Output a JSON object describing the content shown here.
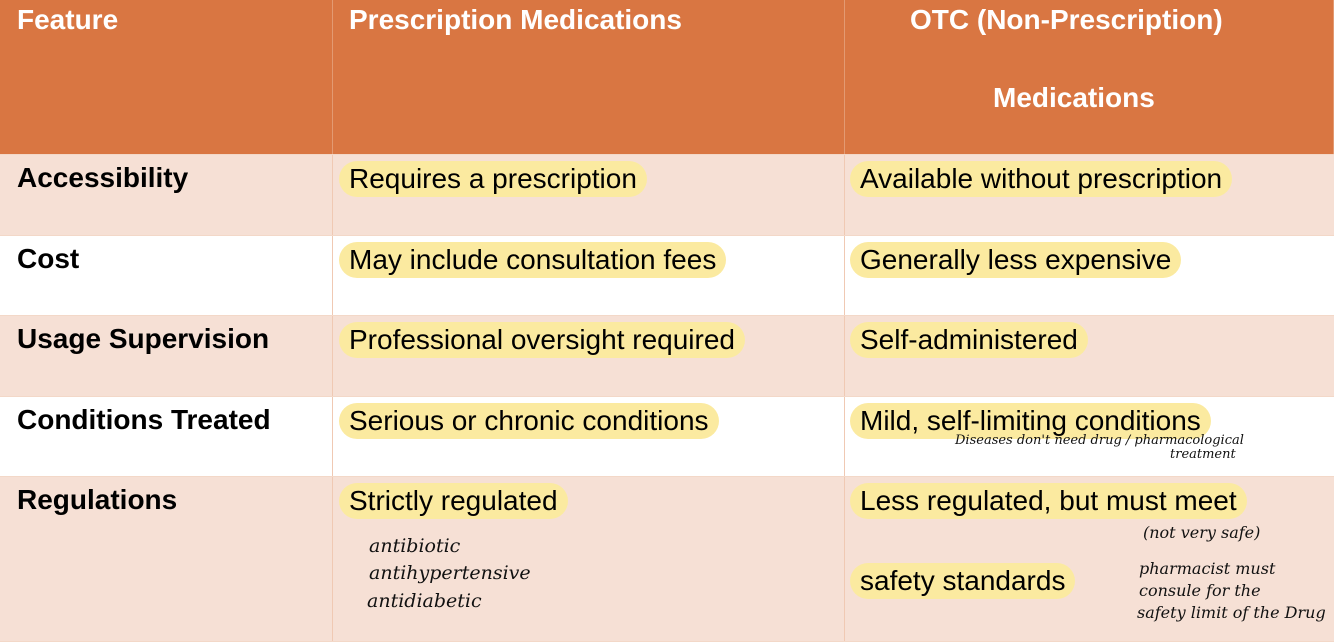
{
  "header": {
    "feature": "Feature",
    "prescription": "Prescription Medications",
    "otc_line1": "OTC (Non-Prescription)",
    "otc_line2": "Medications"
  },
  "rows": [
    {
      "feature": "Accessibility",
      "prescription": "Requires a prescription",
      "otc": "Available without prescription"
    },
    {
      "feature": "Cost",
      "prescription": "May include consultation fees",
      "otc": "Generally less expensive"
    },
    {
      "feature": "Usage Supervision",
      "prescription": "Professional oversight required",
      "otc": "Self-administered"
    },
    {
      "feature": "Conditions Treated",
      "prescription": "Serious or chronic conditions",
      "otc": "Mild, self-limiting conditions"
    },
    {
      "feature": "Regulations",
      "prescription": "Strictly regulated",
      "otc_line1": "Less regulated, but must meet",
      "otc_line2": "safety standards"
    }
  ],
  "notes": {
    "conditions_note_line1": "Diseases don't need drug / pharmacological",
    "conditions_note_line2": "treatment",
    "rx_examples": [
      "antibiotic",
      "antihypertensive",
      "antidiabetic"
    ],
    "otc_safety": "(not very safe)",
    "pharmacist_line1": "pharmacist must",
    "pharmacist_line2": "consule for the",
    "pharmacist_line3": "safety limit of the Drug"
  },
  "colors": {
    "header_bg": "#d97642",
    "band_bg": "#f6e0d5",
    "highlight": "#fbeaa0"
  }
}
